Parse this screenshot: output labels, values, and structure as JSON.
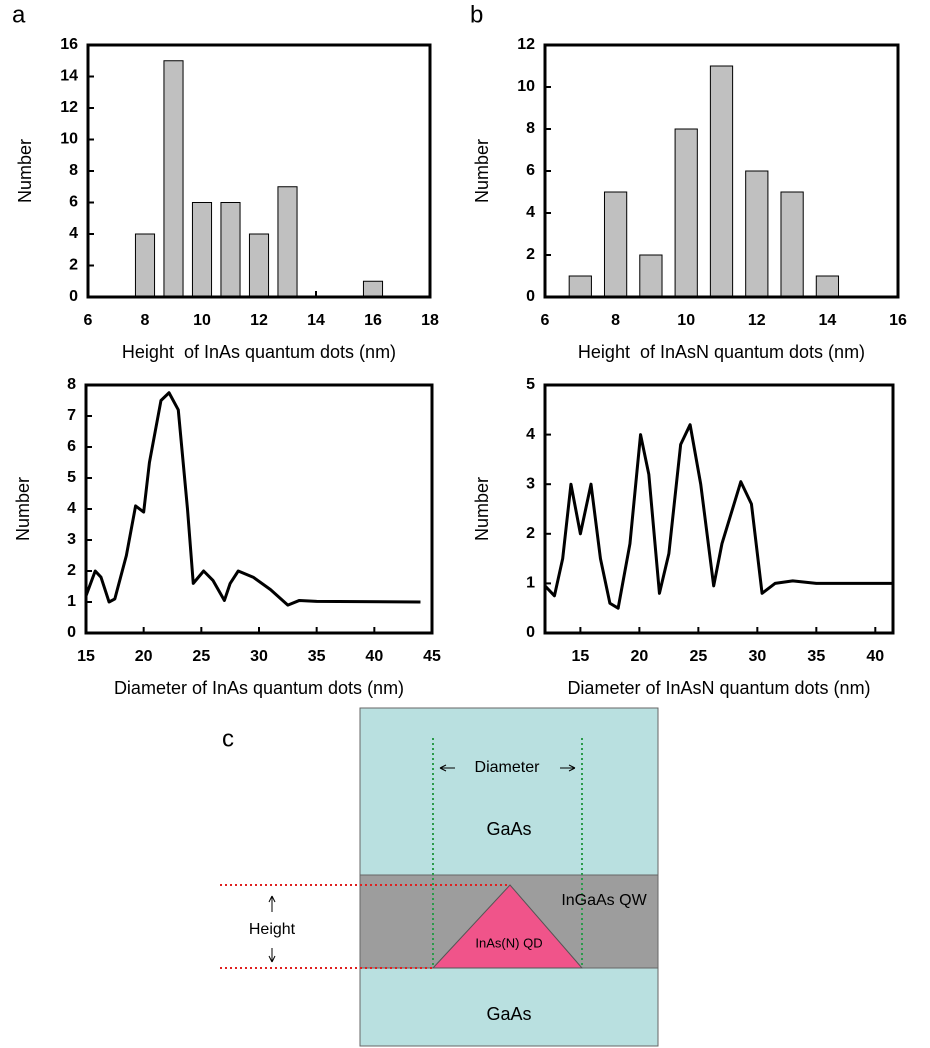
{
  "panel_labels": [
    "a",
    "b",
    "c"
  ],
  "chart_data": [
    {
      "type": "bar",
      "x_label": "Height  of InAs quantum dots (nm)",
      "y_label": "Number",
      "x": [
        8,
        9,
        10,
        11,
        12,
        13,
        16
      ],
      "values": [
        4,
        15,
        6,
        6,
        4,
        7,
        1
      ],
      "color": "#c0c0c0",
      "xlim": [
        6,
        18
      ],
      "xticks": [
        6,
        8,
        10,
        12,
        14,
        16,
        18
      ],
      "ylim": [
        0,
        16
      ],
      "yticks": [
        0,
        2,
        4,
        6,
        8,
        10,
        12,
        14,
        16
      ]
    },
    {
      "type": "bar",
      "x_label": "Height  of InAsN quantum dots (nm)",
      "y_label": "Number",
      "x": [
        7,
        8,
        9,
        10,
        11,
        12,
        13,
        14
      ],
      "values": [
        1,
        5,
        2,
        8,
        11,
        6,
        5,
        1
      ],
      "color": "#c0c0c0",
      "xlim": [
        6,
        16
      ],
      "xticks": [
        6,
        8,
        10,
        12,
        14,
        16
      ],
      "ylim": [
        0,
        12
      ],
      "yticks": [
        0,
        2,
        4,
        6,
        8,
        10,
        12
      ]
    },
    {
      "type": "line",
      "x_label": "Diameter of InAs quantum dots (nm)",
      "y_label": "Number",
      "x": [
        15,
        15.8,
        16.3,
        17,
        17.5,
        18.5,
        19.3,
        20,
        20.5,
        21.5,
        22.2,
        23,
        23.8,
        24.3,
        25.2,
        26,
        27,
        27.5,
        28.2,
        29.5,
        31,
        32.5,
        33.5,
        35,
        44
      ],
      "values": [
        1.2,
        2.0,
        1.8,
        1.0,
        1.1,
        2.5,
        4.1,
        3.9,
        5.5,
        7.5,
        7.75,
        7.2,
        4.0,
        1.6,
        2.0,
        1.7,
        1.05,
        1.6,
        2.0,
        1.8,
        1.4,
        0.9,
        1.05,
        1.02,
        1.0
      ],
      "color": "#000000",
      "xlim": [
        15,
        45
      ],
      "xticks": [
        15,
        20,
        25,
        30,
        35,
        40,
        45
      ],
      "ylim": [
        0,
        8
      ],
      "yticks": [
        0,
        1,
        2,
        3,
        4,
        5,
        6,
        7,
        8
      ]
    },
    {
      "type": "line",
      "x_label": "Diameter of InAsN quantum dots (nm)",
      "y_label": "Number",
      "x": [
        12,
        12.8,
        13.5,
        14.2,
        15,
        15.9,
        16.7,
        17.5,
        18.2,
        19.2,
        20.1,
        20.8,
        21.7,
        22.5,
        23.5,
        24.3,
        25.2,
        26.3,
        27,
        28.6,
        29.5,
        30.4,
        31.5,
        33,
        35,
        41.5
      ],
      "values": [
        0.95,
        0.75,
        1.5,
        3.0,
        2.0,
        3.0,
        1.5,
        0.6,
        0.5,
        1.8,
        4.0,
        3.2,
        0.8,
        1.6,
        3.8,
        4.2,
        3.0,
        0.95,
        1.8,
        3.05,
        2.6,
        0.8,
        1.0,
        1.05,
        1.0,
        1.0
      ],
      "color": "#000000",
      "xlim": [
        12,
        41.5
      ],
      "xticks": [
        15,
        20,
        25,
        30,
        35,
        40
      ],
      "ylim": [
        0,
        5
      ],
      "yticks": [
        0,
        1,
        2,
        3,
        4,
        5
      ]
    }
  ],
  "diagram": {
    "top_layer": "GaAs",
    "well": "InGaAs QW",
    "dot": "InAs(N) QD",
    "bottom_layer": "GaAs",
    "diameter": "Diameter",
    "height": "Height"
  }
}
